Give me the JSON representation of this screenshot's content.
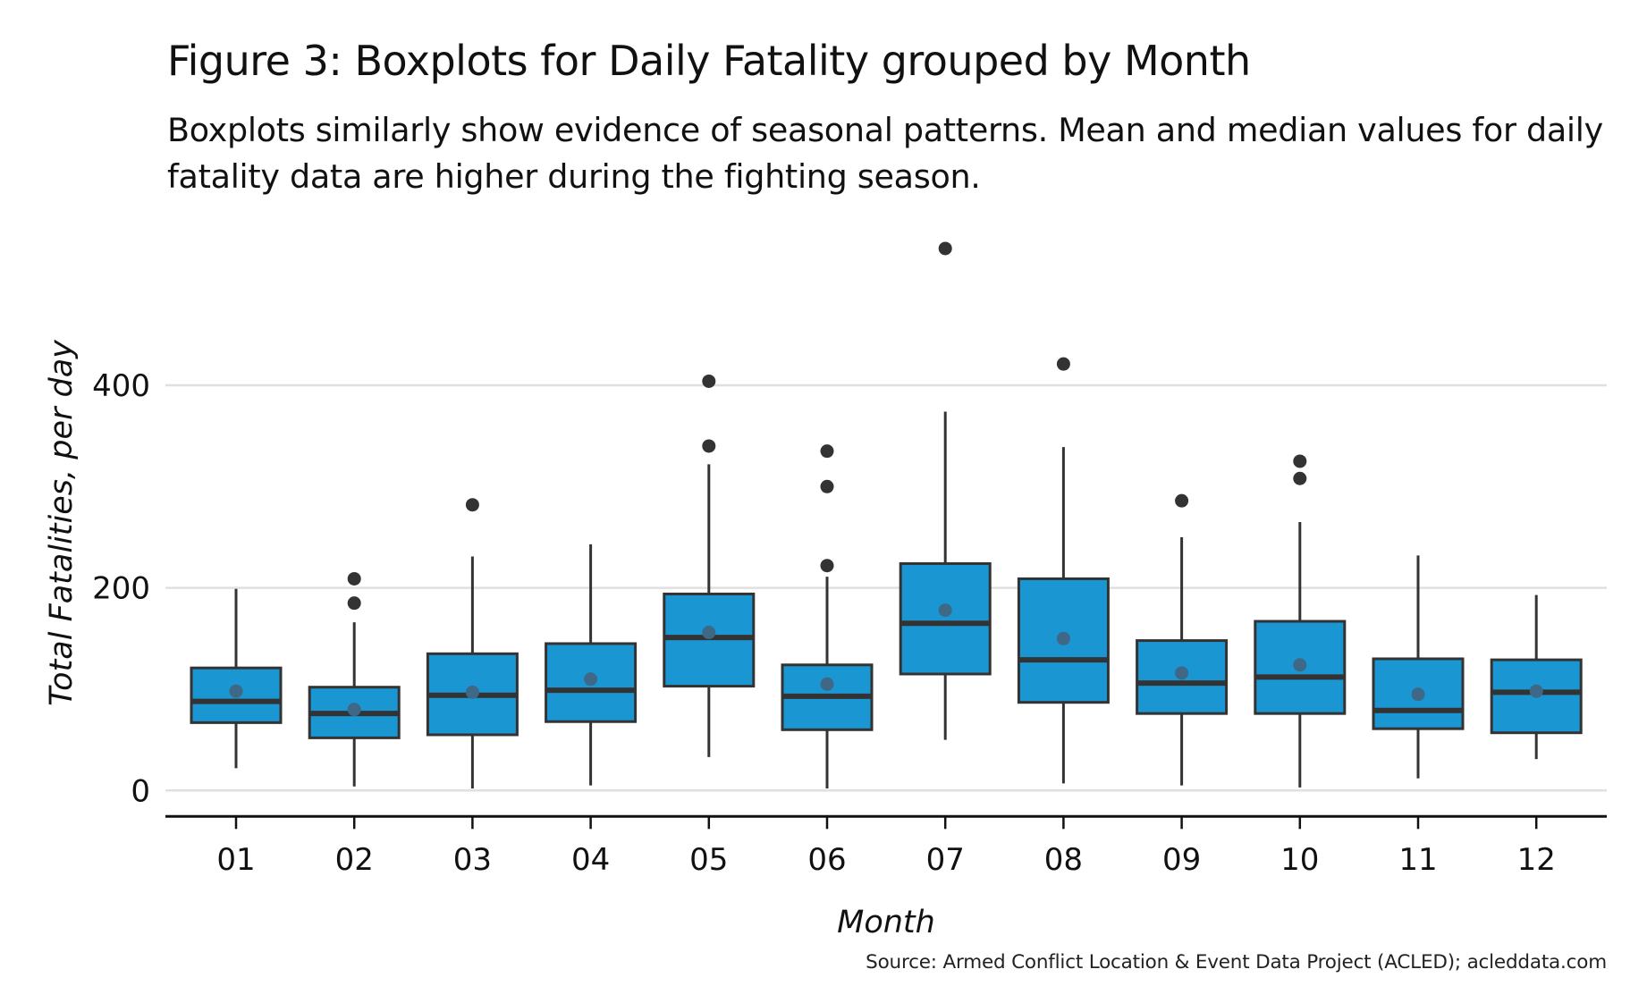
{
  "header": {
    "title": "Figure 3: Boxplots for Daily Fatality grouped by Month",
    "subtitle": "Boxplots similarly show evidence of seasonal patterns. Mean and median values for daily fatality data are higher during the fighting season."
  },
  "caption": "Source: Armed Conflict Location & Event Data Project (ACLED); acleddata.com",
  "colors": {
    "box_fill": "#1A96D2",
    "box_outline": "#333333",
    "outlier": "#333333",
    "mean_point": "#3E6886",
    "grid": "#E0E0E0",
    "axis": "#111111"
  },
  "chart_data": {
    "type": "boxplot",
    "title": "Figure 3: Boxplots for Daily Fatality grouped by Month",
    "subtitle": "Boxplots similarly show evidence of seasonal patterns. Mean and median values for daily fatality data are higher during the fighting season.",
    "xlabel": "Month",
    "ylabel": "Total Fatalities, per day",
    "categories": [
      "01",
      "02",
      "03",
      "04",
      "05",
      "06",
      "07",
      "08",
      "09",
      "10",
      "11",
      "12"
    ],
    "yticks": [
      0,
      200,
      400
    ],
    "ytick_labels": [
      "0",
      "200",
      "400"
    ],
    "ylim": [
      -15,
      545
    ],
    "grid": "horizontal major",
    "legend": "none",
    "boxes": [
      {
        "month": "01",
        "whisker_low": 22,
        "q1": 67,
        "median": 88,
        "q3": 121,
        "whisker_high": 199,
        "mean": 98,
        "outliers": []
      },
      {
        "month": "02",
        "whisker_low": 4,
        "q1": 52,
        "median": 76,
        "q3": 102,
        "whisker_high": 166,
        "mean": 80,
        "outliers": [
          185,
          209
        ]
      },
      {
        "month": "03",
        "whisker_low": 2,
        "q1": 55,
        "median": 94,
        "q3": 135,
        "whisker_high": 231,
        "mean": 97,
        "outliers": [
          282
        ]
      },
      {
        "month": "04",
        "whisker_low": 5,
        "q1": 68,
        "median": 99,
        "q3": 145,
        "whisker_high": 243,
        "mean": 110,
        "outliers": []
      },
      {
        "month": "05",
        "whisker_low": 33,
        "q1": 103,
        "median": 151,
        "q3": 194,
        "whisker_high": 322,
        "mean": 156,
        "outliers": [
          340,
          404
        ]
      },
      {
        "month": "06",
        "whisker_low": 2,
        "q1": 60,
        "median": 93,
        "q3": 124,
        "whisker_high": 211,
        "mean": 105,
        "outliers": [
          222,
          300,
          335
        ]
      },
      {
        "month": "07",
        "whisker_low": 50,
        "q1": 115,
        "median": 165,
        "q3": 224,
        "whisker_high": 374,
        "mean": 178,
        "outliers": [
          535
        ]
      },
      {
        "month": "08",
        "whisker_low": 7,
        "q1": 87,
        "median": 129,
        "q3": 209,
        "whisker_high": 339,
        "mean": 150,
        "outliers": [
          421
        ]
      },
      {
        "month": "09",
        "whisker_low": 5,
        "q1": 76,
        "median": 106,
        "q3": 148,
        "whisker_high": 250,
        "mean": 116,
        "outliers": [
          286
        ]
      },
      {
        "month": "10",
        "whisker_low": 3,
        "q1": 76,
        "median": 112,
        "q3": 167,
        "whisker_high": 265,
        "mean": 124,
        "outliers": [
          308,
          325
        ]
      },
      {
        "month": "11",
        "whisker_low": 12,
        "q1": 61,
        "median": 79,
        "q3": 130,
        "whisker_high": 232,
        "mean": 95,
        "outliers": []
      },
      {
        "month": "12",
        "whisker_low": 31,
        "q1": 57,
        "median": 97,
        "q3": 129,
        "whisker_high": 193,
        "mean": 98,
        "outliers": []
      }
    ],
    "source": "Source: Armed Conflict Location & Event Data Project (ACLED); acleddata.com"
  }
}
